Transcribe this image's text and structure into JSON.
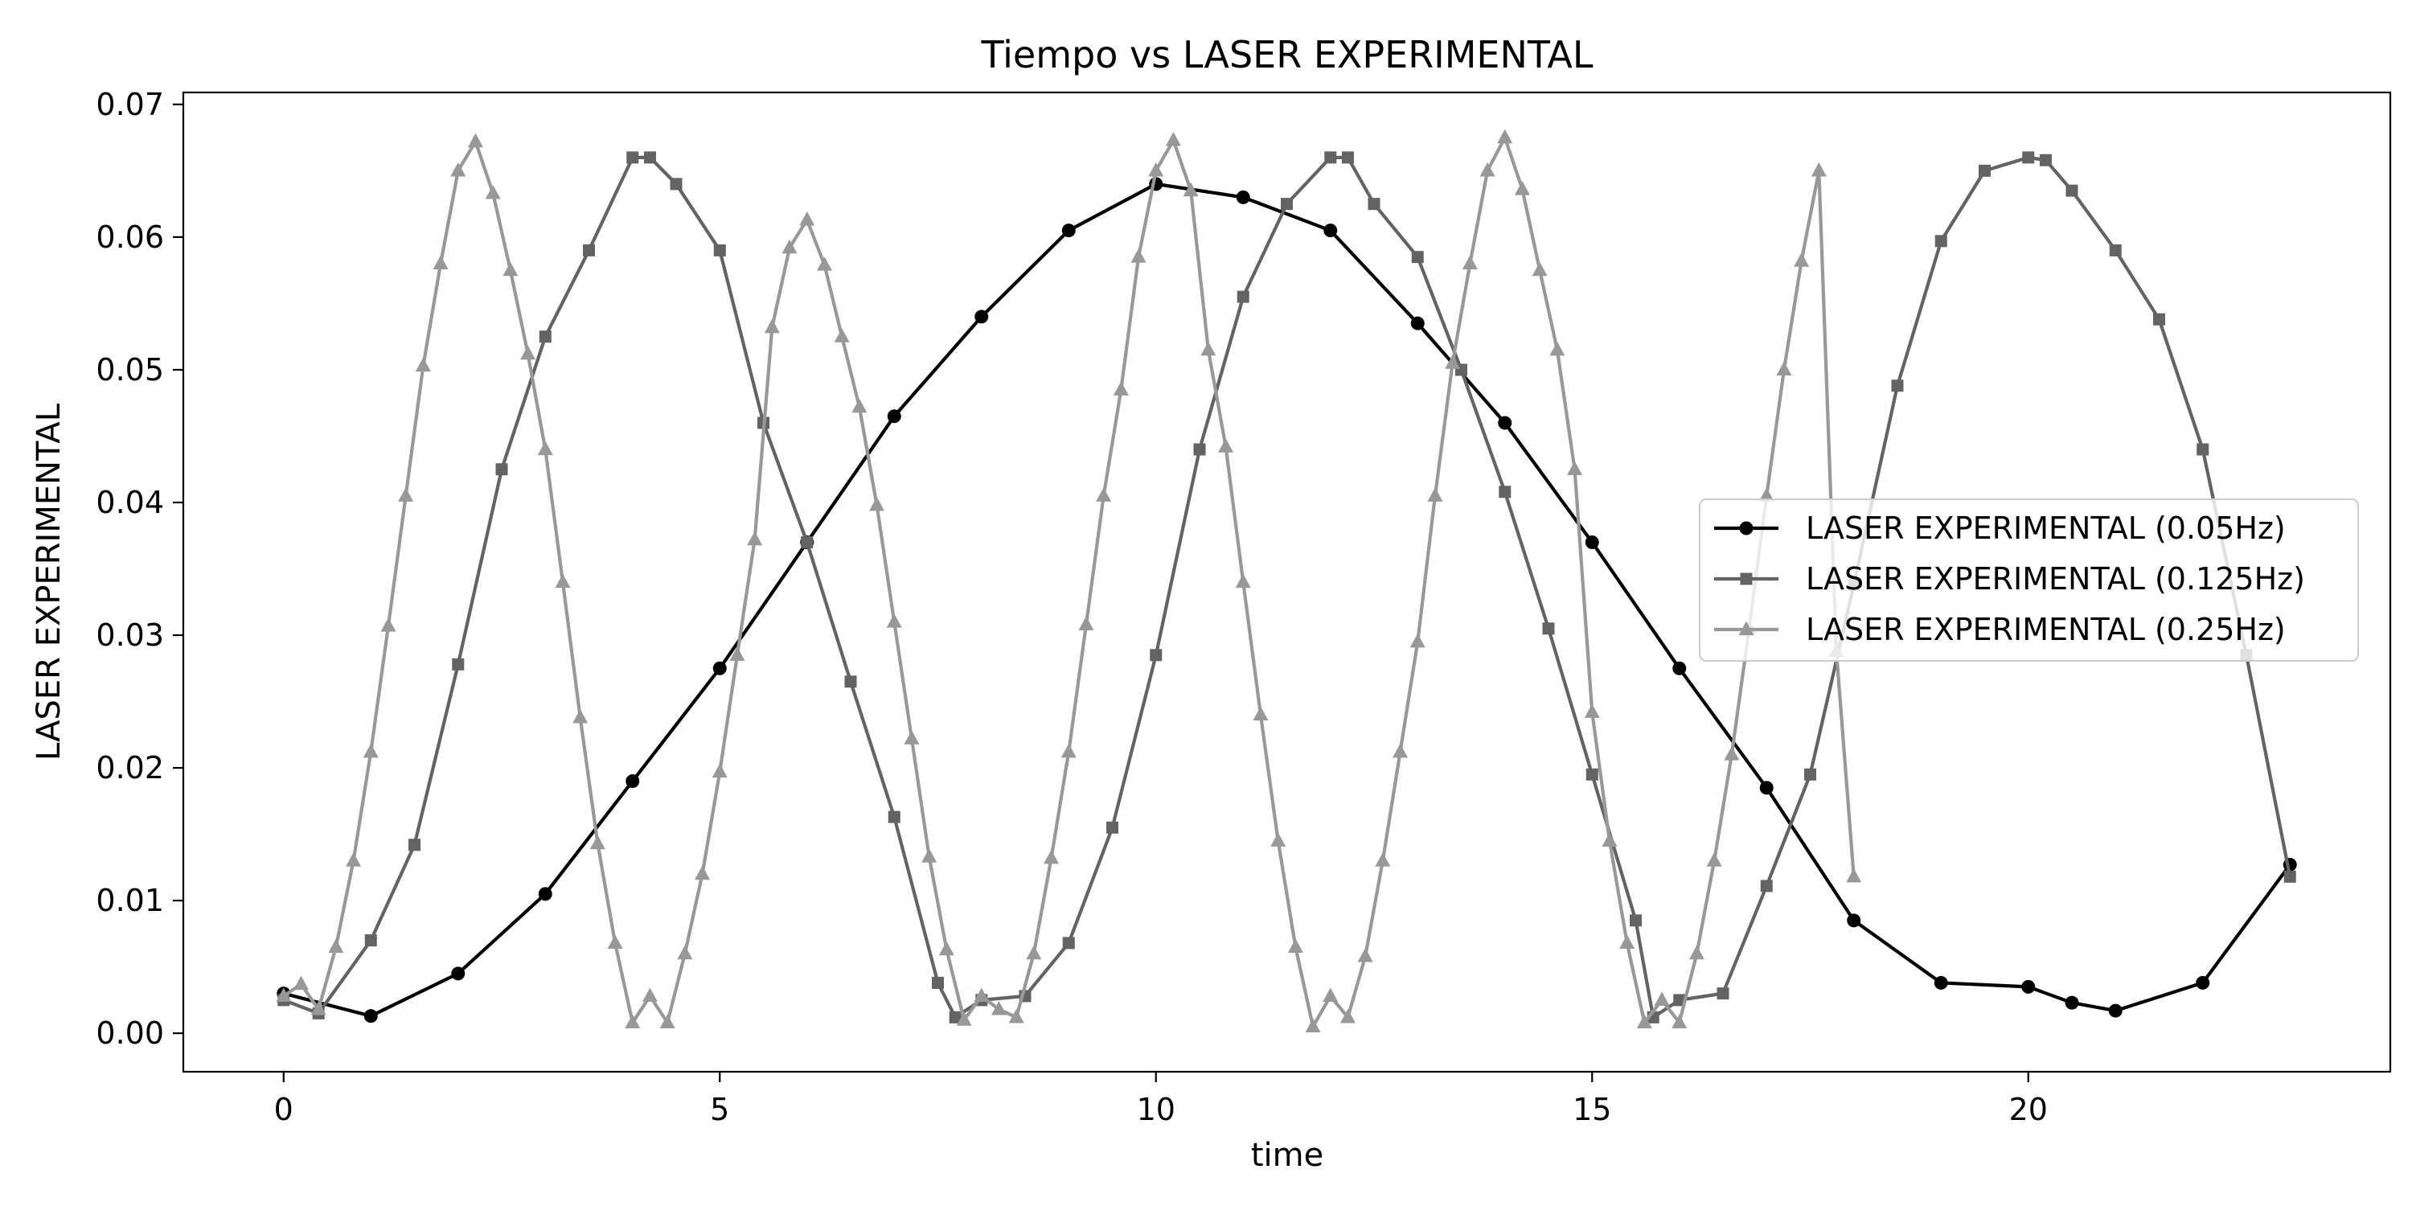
{
  "chart_data": {
    "type": "line",
    "title": "Tiempo vs LASER EXPERIMENTAL",
    "xlabel": "time",
    "ylabel": "LASER EXPERIMENTAL",
    "xlim": [
      -1.15,
      24.15
    ],
    "ylim": [
      -0.0029,
      0.0709
    ],
    "xticks": [
      0,
      5,
      10,
      15,
      20
    ],
    "xtick_labels": [
      "0",
      "5",
      "10",
      "15",
      "20"
    ],
    "yticks": [
      0,
      0.01,
      0.02,
      0.03,
      0.04,
      0.05,
      0.06,
      0.07
    ],
    "ytick_labels": [
      "0.00",
      "0.01",
      "0.02",
      "0.03",
      "0.04",
      "0.05",
      "0.06",
      "0.07"
    ],
    "grid": false,
    "legend_position": "center-right",
    "series": [
      {
        "name": "LASER EXPERIMENTAL (0.05Hz)",
        "color": "#000000",
        "marker": "circle",
        "x": [
          0,
          1,
          2,
          3,
          4,
          5,
          6,
          7,
          8,
          9,
          10,
          11,
          12,
          13,
          14,
          15,
          16,
          17,
          18,
          19,
          20,
          20.5,
          21,
          22,
          23
        ],
        "y": [
          0.003,
          0.0013,
          0.0045,
          0.0105,
          0.019,
          0.0275,
          0.037,
          0.0465,
          0.054,
          0.0605,
          0.064,
          0.063,
          0.0605,
          0.0535,
          0.046,
          0.037,
          0.0275,
          0.0185,
          0.0085,
          0.0038,
          0.0035,
          0.0023,
          0.0017,
          0.0038,
          0.0127
        ]
      },
      {
        "name": "LASER EXPERIMENTAL (0.125Hz)",
        "color": "#636363",
        "marker": "square",
        "x": [
          0,
          0.4,
          1,
          1.5,
          2,
          2.5,
          3,
          3.5,
          4,
          4.2,
          4.5,
          5,
          5.5,
          6,
          6.5,
          7,
          7.5,
          7.7,
          8,
          8.5,
          9,
          9.5,
          10,
          10.5,
          11,
          11.5,
          12,
          12.2,
          12.5,
          13,
          13.5,
          14,
          14.5,
          15,
          15.5,
          15.7,
          16,
          16.5,
          17,
          17.5,
          18,
          18.5,
          19,
          19.5,
          20,
          20.2,
          20.5,
          21,
          21.5,
          22,
          22.5,
          23
        ],
        "y": [
          0.0025,
          0.0015,
          0.007,
          0.0142,
          0.0278,
          0.0425,
          0.0525,
          0.059,
          0.066,
          0.066,
          0.064,
          0.059,
          0.046,
          0.037,
          0.0265,
          0.0163,
          0.0038,
          0.0012,
          0.0025,
          0.0028,
          0.0068,
          0.0155,
          0.0285,
          0.044,
          0.0555,
          0.0625,
          0.066,
          0.066,
          0.0625,
          0.0585,
          0.05,
          0.0408,
          0.0305,
          0.0195,
          0.0085,
          0.0012,
          0.0025,
          0.003,
          0.0111,
          0.0195,
          0.0338,
          0.0488,
          0.0597,
          0.065,
          0.066,
          0.0658,
          0.0635,
          0.059,
          0.0538,
          0.044,
          0.0285,
          0.0118
        ]
      },
      {
        "name": "LASER EXPERIMENTAL (0.25Hz)",
        "color": "#989898",
        "marker": "triangle",
        "x": [
          0,
          0.2,
          0.4,
          0.6,
          0.8,
          1,
          1.2,
          1.4,
          1.6,
          1.8,
          2,
          2.2,
          2.4,
          2.6,
          2.8,
          3,
          3.2,
          3.4,
          3.6,
          3.8,
          4,
          4.2,
          4.4,
          4.6,
          4.8,
          5,
          5.2,
          5.4,
          5.6,
          5.8,
          6,
          6.2,
          6.4,
          6.6,
          6.8,
          7,
          7.2,
          7.4,
          7.6,
          7.8,
          8,
          8.2,
          8.4,
          8.6,
          8.8,
          9,
          9.2,
          9.4,
          9.6,
          9.8,
          10,
          10.2,
          10.4,
          10.6,
          10.8,
          11,
          11.2,
          11.4,
          11.6,
          11.8,
          12,
          12.2,
          12.4,
          12.6,
          12.8,
          13,
          13.2,
          13.4,
          13.6,
          13.8,
          14,
          14.2,
          14.4,
          14.6,
          14.8,
          15,
          15.2,
          15.4,
          15.6,
          15.8,
          16,
          16.2,
          16.4,
          16.6,
          16.8,
          17,
          17.2,
          17.4,
          17.6,
          17.8,
          18
        ],
        "y": [
          0.0028,
          0.0037,
          0.0018,
          0.0065,
          0.013,
          0.0212,
          0.0307,
          0.0405,
          0.0503,
          0.058,
          0.065,
          0.0672,
          0.0633,
          0.0575,
          0.0512,
          0.044,
          0.034,
          0.0238,
          0.0143,
          0.0068,
          0.0008,
          0.0028,
          0.0008,
          0.006,
          0.012,
          0.0197,
          0.0285,
          0.0372,
          0.0532,
          0.0592,
          0.0613,
          0.0579,
          0.0525,
          0.0472,
          0.0398,
          0.031,
          0.0222,
          0.0133,
          0.0063,
          0.001,
          0.0028,
          0.0018,
          0.0012,
          0.006,
          0.0132,
          0.0212,
          0.0308,
          0.0405,
          0.0485,
          0.0585,
          0.065,
          0.0673,
          0.0635,
          0.0515,
          0.0442,
          0.034,
          0.024,
          0.0145,
          0.0065,
          0.0005,
          0.0028,
          0.0012,
          0.0058,
          0.013,
          0.0212,
          0.0295,
          0.0405,
          0.0505,
          0.058,
          0.065,
          0.0675,
          0.0636,
          0.0575,
          0.0515,
          0.0425,
          0.0242,
          0.0145,
          0.0068,
          0.0008,
          0.0025,
          0.0008,
          0.006,
          0.013,
          0.021,
          0.0305,
          0.0405,
          0.05,
          0.0582,
          0.065,
          0.0288,
          0.0118
        ]
      }
    ]
  }
}
